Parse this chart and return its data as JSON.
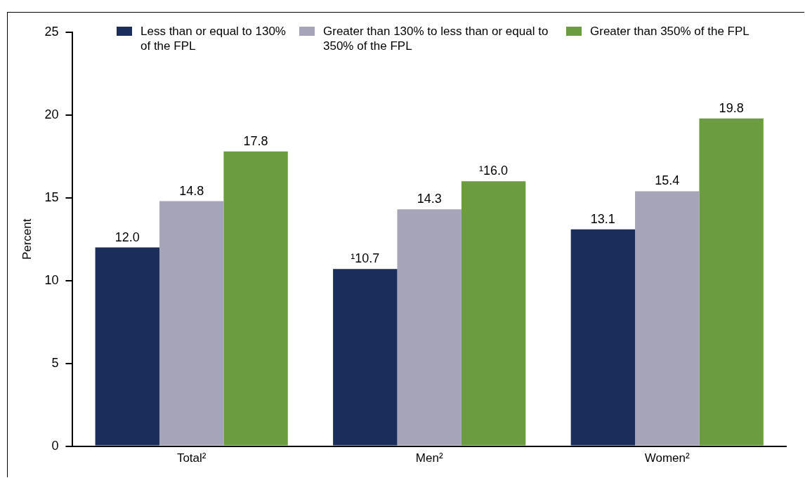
{
  "chart_data": {
    "type": "bar",
    "ylabel": "Percent",
    "categories": [
      "Total²",
      "Men²",
      "Women²"
    ],
    "series": [
      {
        "name": "Less than or equal to 130% of the FPL",
        "color": "#1b2d5a",
        "values": [
          12.0,
          10.7,
          13.1
        ],
        "value_labels": [
          "12.0",
          "¹10.7",
          "13.1"
        ]
      },
      {
        "name": "Greater than 130% to less than or equal to 350% of the FPL",
        "color": "#a5a4b9",
        "values": [
          14.8,
          14.3,
          15.4
        ],
        "value_labels": [
          "14.8",
          "14.3",
          "15.4"
        ]
      },
      {
        "name": "Greater than 350% of the FPL",
        "color": "#6b9d40",
        "values": [
          17.8,
          16.0,
          19.8
        ],
        "value_labels": [
          "17.8",
          "¹16.0",
          "19.8"
        ]
      }
    ],
    "ylim": [
      0,
      25
    ],
    "yticks": [
      0,
      5,
      10,
      15,
      20,
      25
    ],
    "grid": false,
    "legend": "top"
  }
}
